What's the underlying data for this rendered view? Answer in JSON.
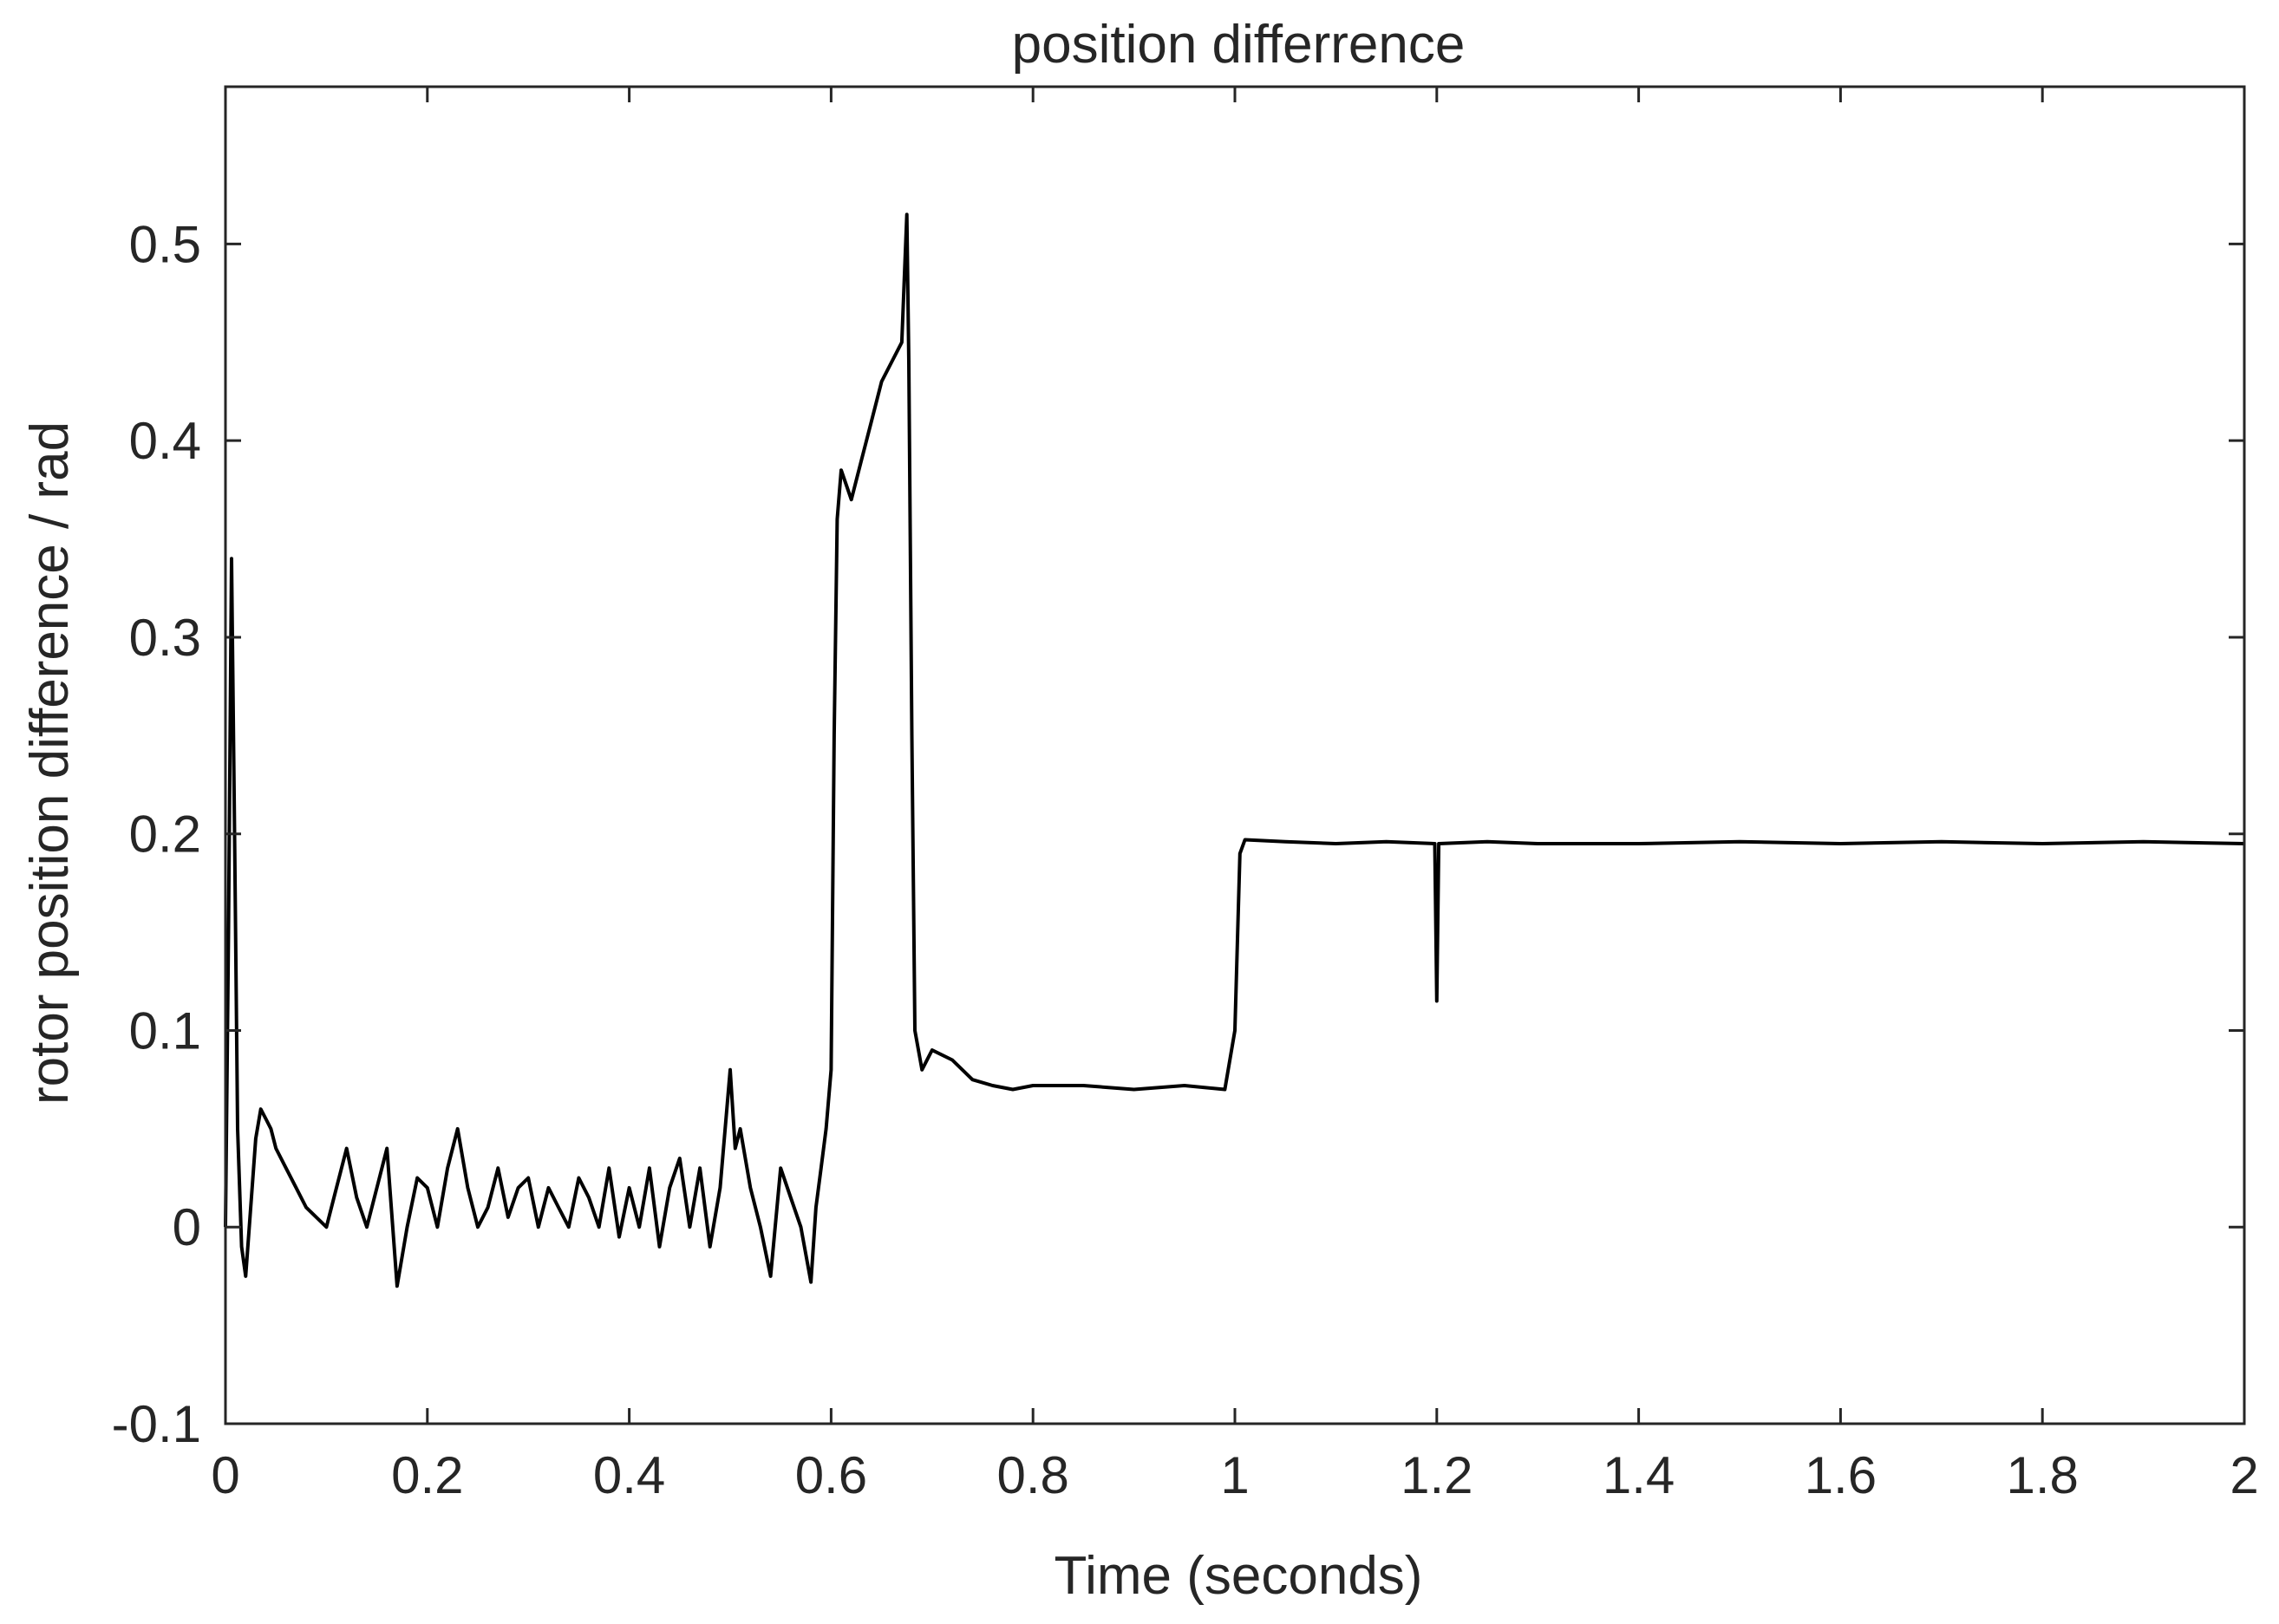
{
  "chart_data": {
    "type": "line",
    "title": "position differrence",
    "xlabel": "Time (seconds)",
    "ylabel": "rotor position difference / rad",
    "xlim": [
      0,
      2
    ],
    "ylim": [
      -0.1,
      0.58
    ],
    "xticks": [
      0,
      0.2,
      0.4,
      0.6,
      0.8,
      1,
      1.2,
      1.4,
      1.6,
      1.8,
      2
    ],
    "xtick_labels": [
      "0",
      "0.2",
      "0.4",
      "0.6",
      "0.8",
      "1",
      "1.2",
      "1.4",
      "1.6",
      "1.8",
      "2"
    ],
    "yticks": [
      -0.1,
      0,
      0.1,
      0.2,
      0.3,
      0.4,
      0.5
    ],
    "ytick_labels": [
      "-0.1",
      "0",
      "0.1",
      "0.2",
      "0.3",
      "0.4",
      "0.5"
    ],
    "grid": false,
    "legend": "none",
    "line_color": "#000000",
    "series": [
      {
        "x": [
          0,
          0.003,
          0.006,
          0.009,
          0.012,
          0.016,
          0.02,
          0.025,
          0.03,
          0.035,
          0.04,
          0.045,
          0.05,
          0.06,
          0.07,
          0.08,
          0.09,
          0.1,
          0.11,
          0.12,
          0.13,
          0.14,
          0.15,
          0.16,
          0.17,
          0.18,
          0.19,
          0.2,
          0.21,
          0.22,
          0.23,
          0.24,
          0.25,
          0.26,
          0.27,
          0.28,
          0.29,
          0.3,
          0.31,
          0.32,
          0.33,
          0.34,
          0.35,
          0.36,
          0.37,
          0.38,
          0.39,
          0.4,
          0.41,
          0.42,
          0.43,
          0.44,
          0.45,
          0.46,
          0.47,
          0.48,
          0.49,
          0.5,
          0.505,
          0.51,
          0.52,
          0.53,
          0.54,
          0.55,
          0.56,
          0.57,
          0.58,
          0.585,
          0.59,
          0.595,
          0.6,
          0.603,
          0.606,
          0.61,
          0.62,
          0.63,
          0.64,
          0.65,
          0.66,
          0.67,
          0.675,
          0.677,
          0.68,
          0.683,
          0.69,
          0.7,
          0.72,
          0.74,
          0.76,
          0.78,
          0.8,
          0.85,
          0.9,
          0.95,
          0.99,
          1.0,
          1.005,
          1.01,
          1.05,
          1.1,
          1.15,
          1.198,
          1.2,
          1.202,
          1.25,
          1.3,
          1.4,
          1.5,
          1.6,
          1.7,
          1.8,
          1.9,
          2.0
        ],
        "y": [
          0.0,
          0.15,
          0.34,
          0.2,
          0.05,
          -0.01,
          -0.025,
          0.01,
          0.045,
          0.06,
          0.055,
          0.05,
          0.04,
          0.03,
          0.02,
          0.01,
          0.005,
          0.0,
          0.02,
          0.04,
          0.015,
          0.0,
          0.02,
          0.04,
          -0.03,
          0.0,
          0.025,
          0.02,
          0.0,
          0.03,
          0.05,
          0.02,
          0.0,
          0.01,
          0.03,
          0.005,
          0.02,
          0.025,
          0.0,
          0.02,
          0.01,
          0.0,
          0.025,
          0.015,
          0.0,
          0.03,
          -0.005,
          0.02,
          0.0,
          0.03,
          -0.01,
          0.02,
          0.035,
          0.0,
          0.03,
          -0.01,
          0.02,
          0.08,
          0.04,
          0.05,
          0.02,
          0.0,
          -0.025,
          0.03,
          0.015,
          0.0,
          -0.028,
          0.01,
          0.03,
          0.05,
          0.08,
          0.25,
          0.36,
          0.385,
          0.37,
          0.39,
          0.41,
          0.43,
          0.44,
          0.45,
          0.515,
          0.44,
          0.25,
          0.1,
          0.08,
          0.09,
          0.085,
          0.075,
          0.072,
          0.07,
          0.072,
          0.072,
          0.07,
          0.072,
          0.07,
          0.1,
          0.19,
          0.197,
          0.196,
          0.195,
          0.196,
          0.195,
          0.115,
          0.195,
          0.196,
          0.195,
          0.195,
          0.196,
          0.195,
          0.196,
          0.195,
          0.196,
          0.195
        ]
      }
    ]
  }
}
